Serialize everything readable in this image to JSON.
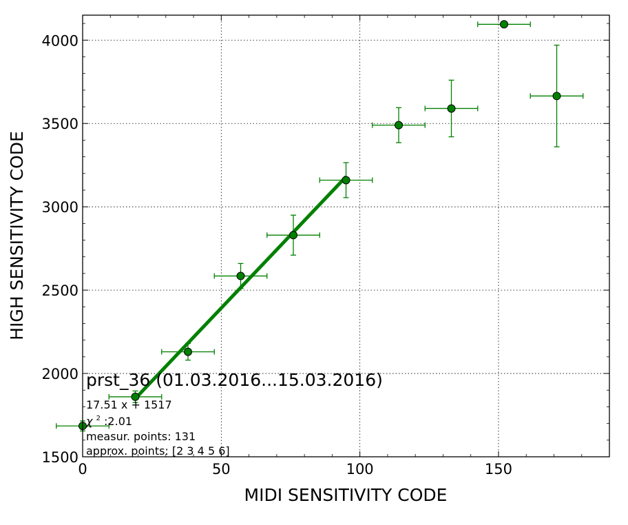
{
  "chart_data": {
    "type": "scatter",
    "title": "",
    "xlabel": "MIDI SENSITIVITY CODE",
    "ylabel": "HIGH SENSITIVITY CODE",
    "xlim": [
      0,
      190
    ],
    "ylim": [
      1500,
      4150
    ],
    "xticks": [
      0,
      50,
      100,
      150
    ],
    "yticks": [
      1500,
      2000,
      2500,
      3000,
      3500,
      4000
    ],
    "grid": true,
    "colors": {
      "series": "#008000",
      "marker_fill": "#008000",
      "marker_edge": "#000000"
    },
    "points": [
      {
        "x": 0.0,
        "y": 1685,
        "xerr": 9.5,
        "yerr": 30
      },
      {
        "x": 19.0,
        "y": 1860,
        "xerr": 9.5,
        "yerr": 35
      },
      {
        "x": 38.0,
        "y": 2130,
        "xerr": 9.5,
        "yerr": 50
      },
      {
        "x": 57.0,
        "y": 2585,
        "xerr": 9.5,
        "yerr": 75
      },
      {
        "x": 76.0,
        "y": 2830,
        "xerr": 9.5,
        "yerr": 120
      },
      {
        "x": 95.0,
        "y": 3160,
        "xerr": 9.5,
        "yerr": 105
      },
      {
        "x": 114.0,
        "y": 3490,
        "xerr": 9.5,
        "yerr": 105
      },
      {
        "x": 133.0,
        "y": 3590,
        "xerr": 9.5,
        "yerr": 170
      },
      {
        "x": 152.0,
        "y": 4095,
        "xerr": 9.5,
        "yerr": 0
      },
      {
        "x": 171.0,
        "y": 3665,
        "xerr": 9.5,
        "yerr": 305
      }
    ],
    "fit": {
      "slope": 17.51,
      "intercept": 1517,
      "x_start": 19.0,
      "x_end": 95.0
    },
    "annotations": {
      "title": "prst_36 (01.03.2016...15.03.2016)",
      "equation": "17.51 x + 1517",
      "chi2_symbol": "χ",
      "chi2_sup": "2",
      "chi2_value": " :2.01",
      "measur_points": "measur. points: 131",
      "approx_points": "approx. points: [2 3 4 5 6]"
    }
  }
}
